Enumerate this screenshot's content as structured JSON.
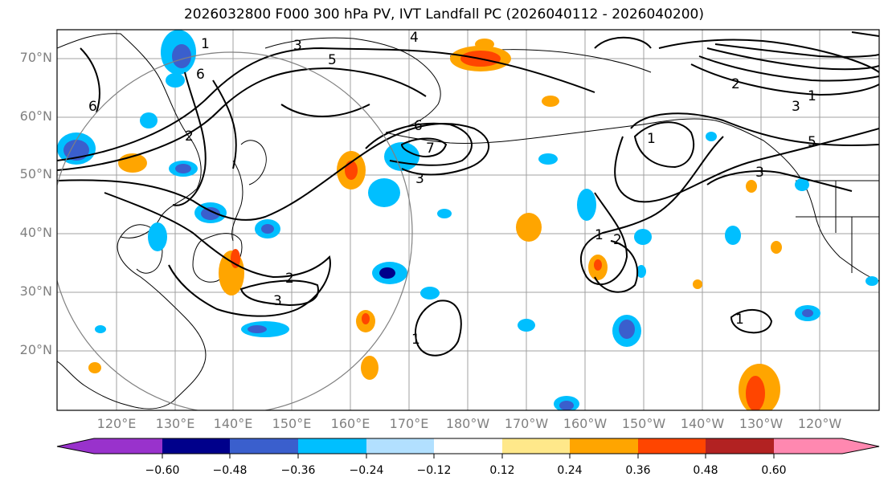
{
  "title": "2026032800 F000 300 hPa PV, IVT Landfall PC (2026040112 - 2026040200)",
  "lat_labels": [
    "70°N",
    "60°N",
    "50°N",
    "40°N",
    "30°N",
    "20°N"
  ],
  "lon_labels": [
    "120°E",
    "130°E",
    "140°E",
    "150°E",
    "160°E",
    "170°E",
    "180°W",
    "170°W",
    "160°W",
    "150°W",
    "140°W",
    "130°W",
    "120°W"
  ],
  "colorbar": {
    "ticks": [
      "−0.60",
      "−0.48",
      "−0.36",
      "−0.24",
      "−0.12",
      "0.12",
      "0.24",
      "0.36",
      "0.48",
      "0.60"
    ],
    "colors": [
      "#9932cc",
      "#00008b",
      "#3a5fcd",
      "#00bfff",
      "#b2e0ff",
      "#ffffff",
      "#ffe88a",
      "#ffa500",
      "#ff4500",
      "#b22222",
      "#ff88b0"
    ]
  },
  "contour_labels": [
    "1",
    "2",
    "3",
    "4",
    "5",
    "6",
    "7"
  ]
}
